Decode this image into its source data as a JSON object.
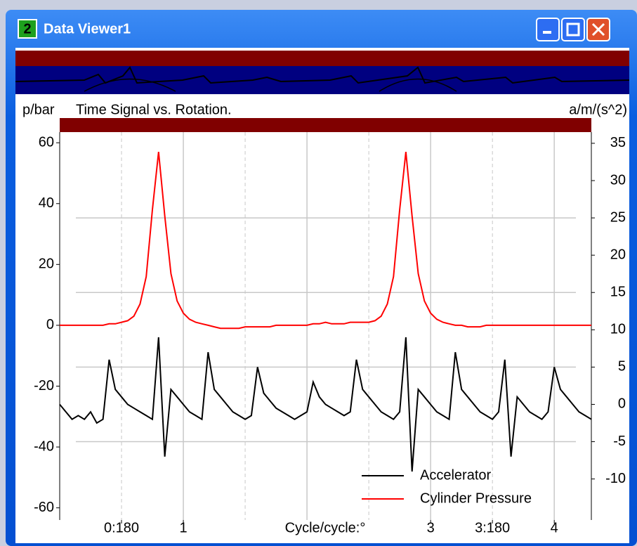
{
  "window": {
    "title": "Data Viewer1",
    "icon_label": "2"
  },
  "chart_data": {
    "type": "line",
    "title": "Time Signal vs. Rotation.",
    "y_label": "p/bar",
    "y2_label": "a/m/(s^2)",
    "x_label": "Cycle/cycle:°",
    "x": [
      0,
      0.05,
      0.1,
      0.15,
      0.2,
      0.25,
      0.3,
      0.35,
      0.4,
      0.45,
      0.5,
      0.55,
      0.6,
      0.65,
      0.7,
      0.75,
      0.8,
      0.85,
      0.9,
      0.95,
      1,
      1.05,
      1.1,
      1.15,
      1.2,
      1.25,
      1.3,
      1.35,
      1.4,
      1.45,
      1.5,
      1.55,
      1.6,
      1.65,
      1.7,
      1.75,
      1.8,
      1.85,
      1.9,
      1.95,
      2,
      2.05,
      2.1,
      2.15,
      2.2,
      2.25,
      2.3,
      2.35,
      2.4,
      2.45,
      2.5,
      2.55,
      2.6,
      2.65,
      2.7,
      2.75,
      2.8,
      2.85,
      2.9,
      2.95,
      3,
      3.05,
      3.1,
      3.15,
      3.2,
      3.25,
      3.3,
      3.35,
      3.4,
      3.45,
      3.5,
      3.55,
      3.6,
      3.65,
      3.7,
      3.75,
      3.8,
      3.85,
      3.9,
      3.95,
      4,
      4.05,
      4.1,
      4.15,
      4.2,
      4.25,
      4.3
    ],
    "series": [
      {
        "name": "Accelerator",
        "color": "#000000",
        "axis": "y2",
        "values": [
          0,
          -1,
          -2,
          -1.5,
          -2,
          -1,
          -2.5,
          -2,
          6,
          2,
          1,
          0,
          -0.5,
          -1,
          -1.5,
          -2,
          9,
          -7,
          2,
          1,
          0,
          -1,
          -1.5,
          -2,
          7,
          2,
          1,
          0,
          -1,
          -1.5,
          -2,
          -1.5,
          5,
          1.5,
          0.5,
          -0.5,
          -1,
          -1.5,
          -2,
          -1.5,
          -1,
          3,
          1,
          0,
          -0.5,
          -1,
          -1.5,
          -1,
          6,
          2,
          1,
          0,
          -1,
          -1.5,
          -2,
          -1,
          9,
          -9,
          2,
          1,
          0,
          -1,
          -1.5,
          -2,
          7,
          2,
          1,
          0,
          -1,
          -1.5,
          -2,
          -1,
          6,
          -7,
          1,
          0,
          -1,
          -1.5,
          -2,
          -1,
          5,
          2,
          1,
          0,
          -1,
          -1.5,
          -2
        ]
      },
      {
        "name": "Cylinder Pressure",
        "color": "#ff0000",
        "values": [
          0,
          0,
          0,
          0,
          0,
          0,
          0,
          0,
          0.5,
          0.5,
          1,
          1.5,
          3,
          7,
          16,
          38,
          57,
          36,
          17,
          8,
          4,
          2,
          1,
          0.5,
          0,
          -0.5,
          -1,
          -1,
          -1,
          -1,
          -0.5,
          -0.5,
          -0.5,
          -0.5,
          -0.5,
          0,
          0,
          0,
          0,
          0,
          0,
          0.5,
          0.5,
          1,
          0.5,
          0.5,
          0.5,
          1,
          1,
          1,
          1,
          1.5,
          3,
          7,
          16,
          38,
          57,
          36,
          17,
          8,
          4,
          2,
          1,
          0.5,
          0,
          0,
          -0.5,
          -0.5,
          -0.5,
          0,
          0,
          0,
          0,
          0,
          0,
          0,
          0,
          0,
          0,
          0,
          0,
          0,
          0,
          0,
          0,
          0,
          0
        ]
      }
    ],
    "xlim": [
      0,
      4.3
    ],
    "xticks": [
      {
        "value": 0.5,
        "label": "0:180"
      },
      1,
      3,
      {
        "value": 3.5,
        "label": "3:180"
      },
      4
    ],
    "xgrid_major": [
      1,
      2,
      3,
      4
    ],
    "xgrid_minor": [
      0.5,
      1.5,
      2.5,
      3.5
    ],
    "ylim": [
      -64,
      63.5
    ],
    "yticks": [
      -60,
      -40,
      -20,
      0,
      20,
      40,
      60
    ],
    "y2lim": [
      -15.5,
      36.5
    ],
    "y2ticks": [
      -10,
      -5,
      0,
      5,
      10,
      15,
      20,
      25,
      30,
      35
    ],
    "y2grid": [
      -5,
      5,
      15,
      25
    ],
    "legend": "lower right"
  }
}
